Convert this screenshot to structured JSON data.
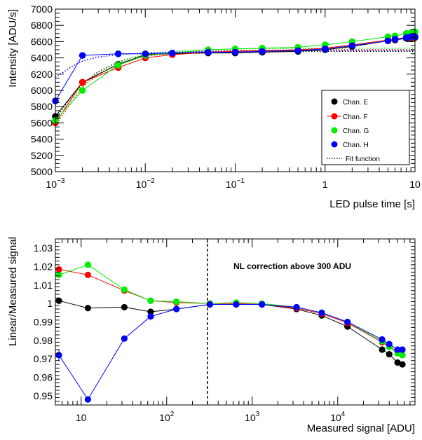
{
  "chart_data": [
    {
      "type": "scatter",
      "xlabel": "LED pulse time [s]",
      "ylabel": "Intensity [ADU/s]",
      "xscale": "log",
      "xlim": [
        0.001,
        10
      ],
      "ylim": [
        5000,
        7000
      ],
      "x_ticks": [
        {
          "v": 0.001,
          "base": "10",
          "exp": "−3"
        },
        {
          "v": 0.01,
          "base": "10",
          "exp": "−2"
        },
        {
          "v": 0.1,
          "base": "10",
          "exp": "−1"
        },
        {
          "v": 1,
          "base": "1",
          "exp": ""
        },
        {
          "v": 10,
          "base": "10",
          "exp": ""
        }
      ],
      "y_ticks": [
        5000,
        5200,
        5400,
        5600,
        5800,
        6000,
        6200,
        6400,
        6600,
        6800,
        7000
      ],
      "legend_position": "bottom-right",
      "series": [
        {
          "name": "Chan. E",
          "color": "#000000",
          "x": [
            0.001,
            0.002,
            0.005,
            0.01,
            0.02,
            0.05,
            0.1,
            0.2,
            0.5,
            1,
            2,
            5,
            6,
            8,
            9,
            10
          ],
          "y": [
            5680,
            6100,
            6320,
            6440,
            6450,
            6460,
            6460,
            6470,
            6480,
            6500,
            6540,
            6610,
            6620,
            6640,
            6640,
            6650
          ]
        },
        {
          "name": "Chan. F",
          "color": "#ff0000",
          "x": [
            0.001,
            0.002,
            0.005,
            0.01,
            0.02,
            0.05,
            0.1,
            0.2,
            0.5,
            1,
            2,
            5,
            6,
            8,
            9,
            10
          ],
          "y": [
            5600,
            6100,
            6280,
            6400,
            6440,
            6470,
            6480,
            6490,
            6500,
            6520,
            6560,
            6620,
            6630,
            6650,
            6650,
            6660
          ]
        },
        {
          "name": "Chan. G",
          "color": "#00ee00",
          "x": [
            0.001,
            0.002,
            0.005,
            0.01,
            0.02,
            0.05,
            0.1,
            0.2,
            0.5,
            1,
            2,
            5,
            6,
            8,
            9,
            10
          ],
          "y": [
            5630,
            6000,
            6310,
            6430,
            6460,
            6500,
            6510,
            6520,
            6530,
            6560,
            6600,
            6660,
            6670,
            6700,
            6710,
            6720
          ]
        },
        {
          "name": "Chan. H",
          "color": "#0000ff",
          "x": [
            0.001,
            0.002,
            0.005,
            0.01,
            0.02,
            0.05,
            0.1,
            0.2,
            0.5,
            1,
            2,
            5,
            6,
            8,
            9,
            10
          ],
          "y": [
            5870,
            6430,
            6450,
            6450,
            6460,
            6470,
            6470,
            6480,
            6490,
            6510,
            6550,
            6610,
            6630,
            6650,
            6660,
            6660
          ]
        },
        {
          "name": "Fit function",
          "line": "dotted",
          "color": "#000000",
          "fit": true,
          "curves": [
            {
              "color": "#000000",
              "x": [
                0.001,
                0.0015,
                0.002,
                0.003,
                0.005,
                0.007,
                0.01,
                0.02,
                0.05,
                0.1,
                1,
                10
              ],
              "y": [
                5650,
                5920,
                6080,
                6230,
                6350,
                6400,
                6430,
                6460,
                6470,
                6475,
                6480,
                6480
              ]
            },
            {
              "color": "#ff0000",
              "x": [
                0.001,
                0.0015,
                0.002,
                0.003,
                0.005,
                0.007,
                0.01,
                0.02,
                0.05,
                0.1,
                1,
                10
              ],
              "y": [
                5570,
                5850,
                6040,
                6200,
                6320,
                6380,
                6420,
                6460,
                6480,
                6490,
                6500,
                6500
              ]
            },
            {
              "color": "#00ee00",
              "x": [
                0.001,
                0.0015,
                0.002,
                0.003,
                0.005,
                0.007,
                0.01,
                0.02,
                0.05,
                0.1,
                1,
                10
              ],
              "y": [
                5600,
                5880,
                6060,
                6220,
                6340,
                6400,
                6440,
                6480,
                6500,
                6510,
                6520,
                6520
              ]
            },
            {
              "color": "#0000ff",
              "x": [
                0.001,
                0.0015,
                0.002,
                0.003,
                0.005,
                0.007,
                0.01,
                0.02,
                0.05,
                0.1,
                1,
                10
              ],
              "y": [
                6160,
                6290,
                6360,
                6410,
                6440,
                6450,
                6460,
                6470,
                6480,
                6485,
                6490,
                6490
              ]
            }
          ]
        }
      ]
    },
    {
      "type": "scatter",
      "xlabel": "Measured signal [ADU]",
      "ylabel": "Linear/Measured signal",
      "xscale": "log",
      "xlim": [
        5,
        80000
      ],
      "ylim": [
        0.945,
        1.035
      ],
      "x_ticks": [
        {
          "v": 10,
          "base": "10",
          "exp": ""
        },
        {
          "v": 100,
          "base": "10",
          "exp": "2"
        },
        {
          "v": 1000,
          "base": "10",
          "exp": "3"
        },
        {
          "v": 10000,
          "base": "10",
          "exp": "4"
        }
      ],
      "y_ticks": [
        "0.95",
        "0.96",
        "0.97",
        "0.98",
        "0.99",
        "1",
        "1.01",
        "1.02",
        "1.03"
      ],
      "annotation": "NL correction above 300 ADU",
      "vline_x": 300,
      "series": [
        {
          "name": "Chan. E",
          "color": "#000000",
          "x": [
            5.5,
            12,
            32,
            65,
            130,
            320,
            650,
            1300,
            3300,
            6500,
            13000,
            33000,
            40000,
            50000,
            57000
          ],
          "y": [
            1.0015,
            0.9975,
            0.998,
            0.9955,
            0.997,
            0.9995,
            0.9995,
            0.9995,
            0.997,
            0.9935,
            0.9875,
            0.975,
            0.9725,
            0.968,
            0.967
          ]
        },
        {
          "name": "Chan. F",
          "color": "#ff0000",
          "x": [
            5.5,
            12,
            32,
            65,
            130,
            320,
            650,
            1300,
            3300,
            6500,
            13000,
            33000,
            40000,
            50000,
            57000
          ],
          "y": [
            1.0185,
            1.0155,
            1.007,
            1.0015,
            1.0005,
            1.0,
            1.0,
            0.9995,
            0.9975,
            0.9945,
            0.9895,
            0.979,
            0.9765,
            0.974,
            0.972
          ]
        },
        {
          "name": "Chan. G",
          "color": "#00ee00",
          "x": [
            5.5,
            12,
            32,
            65,
            130,
            320,
            650,
            1300,
            3300,
            6500,
            13000,
            33000,
            40000,
            50000,
            57000
          ],
          "y": [
            1.0155,
            1.021,
            1.0075,
            1.0015,
            1.001,
            1.0,
            1.0005,
            1.0,
            0.998,
            0.995,
            0.99,
            0.9795,
            0.9765,
            0.973,
            0.972
          ]
        },
        {
          "name": "Chan. H",
          "color": "#0000ff",
          "x": [
            5.5,
            12,
            32,
            65,
            130,
            320,
            650,
            1300,
            3300,
            6500,
            13000,
            33000,
            40000,
            50000,
            57000
          ],
          "y": [
            0.972,
            0.948,
            0.981,
            0.993,
            0.997,
            0.9995,
            0.9995,
            0.9995,
            0.998,
            0.995,
            0.99,
            0.9805,
            0.978,
            0.975,
            0.975
          ]
        }
      ]
    }
  ]
}
